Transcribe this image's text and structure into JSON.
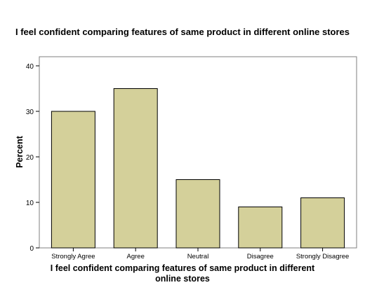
{
  "chart_data": {
    "type": "bar",
    "title": "I feel confident comparing features of same product in different online stores",
    "xlabel": "I feel confident comparing features of same product in different online stores",
    "ylabel": "Percent",
    "categories": [
      "Strongly Agree",
      "Agree",
      "Neutral",
      "Disagree",
      "Strongly Disagree"
    ],
    "values": [
      30,
      35,
      15,
      9,
      11
    ],
    "ylim": [
      0,
      40
    ],
    "yticks": [
      0,
      10,
      20,
      30,
      40
    ],
    "grid": false,
    "bar_color": "#d4d09a",
    "bar_edge_color": "#000000",
    "plot_background": "#ffffff"
  }
}
